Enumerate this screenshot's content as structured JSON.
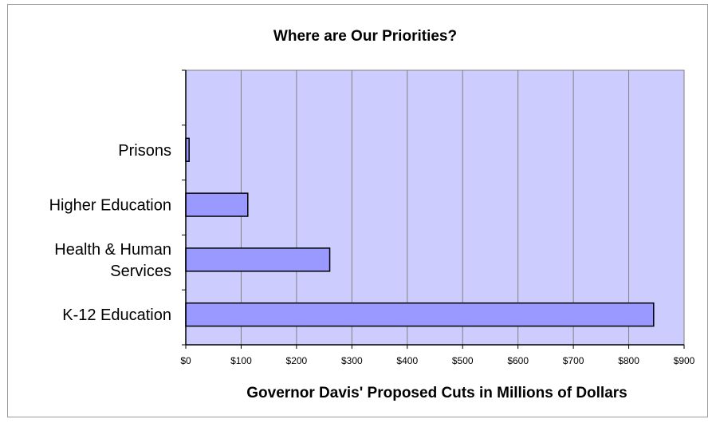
{
  "chart_data": {
    "type": "bar",
    "orientation": "horizontal",
    "title": "Where are Our Priorities?",
    "xlabel": "Governor Davis' Proposed Cuts in Millions of Dollars",
    "ylabel": "",
    "categories": [
      "K-12 Education",
      "Health & Human Services",
      "Higher Education",
      "Prisons"
    ],
    "category_lines": [
      [
        "K-12 Education"
      ],
      [
        "Health & Human",
        "Services"
      ],
      [
        "Higher Education"
      ],
      [
        "Prisons"
      ]
    ],
    "values": [
      845,
      260,
      112,
      6
    ],
    "xlim": [
      0,
      900
    ],
    "ticks": [
      0,
      100,
      200,
      300,
      400,
      500,
      600,
      700,
      800,
      900
    ],
    "tick_labels": [
      "$0",
      "$100",
      "$200",
      "$300",
      "$400",
      "$500",
      "$600",
      "$700",
      "$800",
      "$900"
    ],
    "grid": true,
    "legend": "none",
    "colors": {
      "plot_bg": "#ccccff",
      "bar_fill": "#9999ff",
      "bar_edge": "#000000",
      "grid": "#808080"
    }
  }
}
